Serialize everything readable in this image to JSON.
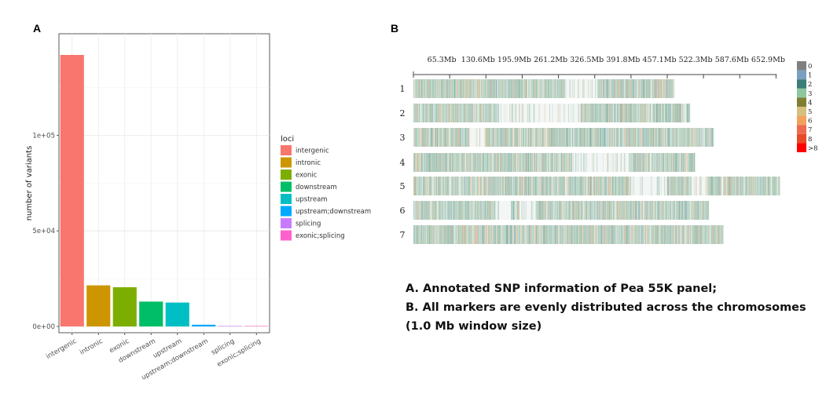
{
  "panel_a_letter": "A",
  "panel_b_letter": "B",
  "caption": {
    "line1": "A. Annotated SNP information of Pea 55K panel;",
    "line2": "B. All markers are evenly distributed across the chromosomes",
    "line3": "(1.0 Mb window size)"
  },
  "chart_data": [
    {
      "type": "bar",
      "title": "",
      "xlabel": "",
      "ylabel": "number of variants",
      "legend_title": "loci",
      "legend_position": "right",
      "grid": true,
      "ylim": [
        0,
        142000
      ],
      "y_ticks": [
        0,
        50000,
        100000
      ],
      "y_tick_labels": [
        "0e+00",
        "5e+04",
        "1e+05"
      ],
      "categories": [
        "intergenic",
        "intronic",
        "exonic",
        "downstream",
        "upstream",
        "upstream;downstream",
        "splicing",
        "exonic;splicing"
      ],
      "values": [
        142000,
        21500,
        20500,
        13000,
        12500,
        900,
        50,
        20
      ],
      "colors": [
        "#F8766D",
        "#CD9600",
        "#7CAE00",
        "#00BE67",
        "#00BFC4",
        "#00A9FF",
        "#C77CFF",
        "#FF61CC"
      ]
    },
    {
      "type": "heatmap",
      "title": "",
      "x_unit": "Mb",
      "x_ticks": [
        65.3,
        130.6,
        195.9,
        261.2,
        326.5,
        391.8,
        457.1,
        522.3,
        587.6,
        652.9
      ],
      "x_tick_labels": [
        "65.3Mb",
        "130.6Mb",
        "195.9Mb",
        "261.2Mb",
        "326.5Mb",
        "391.8Mb",
        "457.1Mb",
        "522.3Mb",
        "587.6Mb",
        "652.9Mb"
      ],
      "window_size": "1.0 Mb",
      "chromosomes": [
        "1",
        "2",
        "3",
        "4",
        "5",
        "6",
        "7"
      ],
      "chromosome_lengths_mb": [
        470,
        498,
        541,
        507,
        660,
        532,
        558
      ],
      "sparse_regions_mb": [
        [
          [
            272,
            330
          ]
        ],
        [
          [
            155,
            300
          ]
        ],
        [
          [
            100,
            128
          ]
        ],
        [
          [
            285,
            388
          ]
        ],
        [
          [
            392,
            455
          ],
          [
            500,
            528
          ]
        ],
        [
          [
            148,
            175
          ],
          [
            190,
            220
          ]
        ],
        []
      ],
      "legend_labels": [
        "0",
        "1",
        "2",
        "3",
        "4",
        "5",
        "6",
        "7",
        "8",
        ">8"
      ],
      "legend_colors": [
        "#7f7f7f",
        "#7b9fc2",
        "#3b7f78",
        "#8ec79d",
        "#7f7f32",
        "#d6c07f",
        "#f2a25e",
        "#ee6a4f",
        "#e84a27",
        "#ff0000"
      ]
    }
  ]
}
